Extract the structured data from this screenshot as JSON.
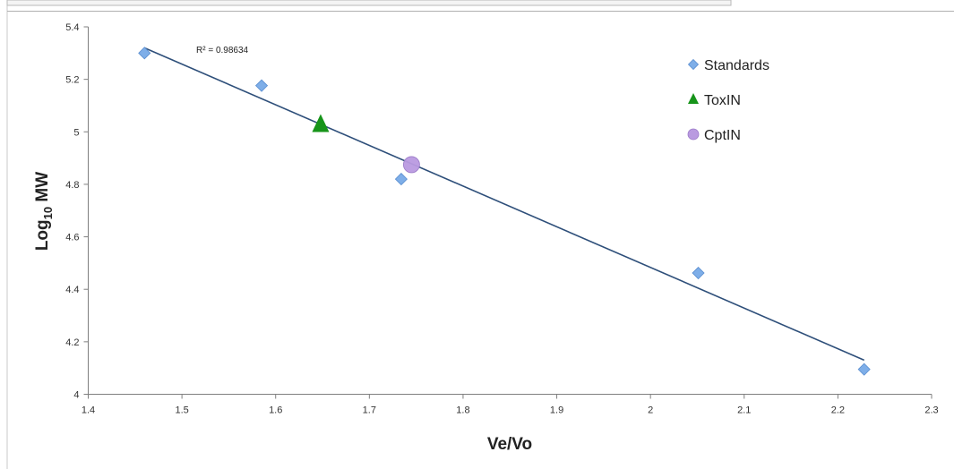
{
  "chart_data": {
    "type": "scatter",
    "xlabel": "Ve/Vo",
    "ylabel_main": "Log",
    "ylabel_sub": "10",
    "ylabel_tail": " MW",
    "xlim": [
      1.4,
      2.3
    ],
    "ylim": [
      4,
      5.4
    ],
    "x_ticks": [
      1.4,
      1.5,
      1.6,
      1.7,
      1.8,
      1.9,
      2,
      2.1,
      2.2,
      2.3
    ],
    "x_tick_labels": [
      "1.4",
      "1.5",
      "1.6",
      "1.7",
      "1.8",
      "1.9",
      "2",
      "2.1",
      "2.2",
      "2.3"
    ],
    "y_ticks": [
      4,
      4.2,
      4.4,
      4.6,
      4.8,
      5,
      5.2,
      5.4
    ],
    "y_tick_labels": [
      "4",
      "4.2",
      "4.4",
      "4.6",
      "4.8",
      "5",
      "5.2",
      "5.4"
    ],
    "grid": false,
    "legend_position": "top-right",
    "series": [
      {
        "name": "Standards",
        "marker": "diamond",
        "color": "#7eaee8",
        "points": [
          {
            "x": 1.46,
            "y": 5.3
          },
          {
            "x": 1.585,
            "y": 5.176
          },
          {
            "x": 1.734,
            "y": 4.82
          },
          {
            "x": 2.051,
            "y": 4.462
          },
          {
            "x": 2.228,
            "y": 4.095
          }
        ]
      },
      {
        "name": "ToxIN",
        "marker": "triangle",
        "color": "#17941a",
        "points": [
          {
            "x": 1.648,
            "y": 5.025
          }
        ]
      },
      {
        "name": "CptIN",
        "marker": "circle",
        "color": "#b99ae0",
        "points": [
          {
            "x": 1.745,
            "y": 4.875
          }
        ]
      }
    ],
    "trendline": {
      "color": "#2e4f7a",
      "start": {
        "x": 1.46,
        "y": 5.32
      },
      "end": {
        "x": 2.228,
        "y": 4.13
      }
    },
    "annotation": "R² = 0.98634"
  }
}
